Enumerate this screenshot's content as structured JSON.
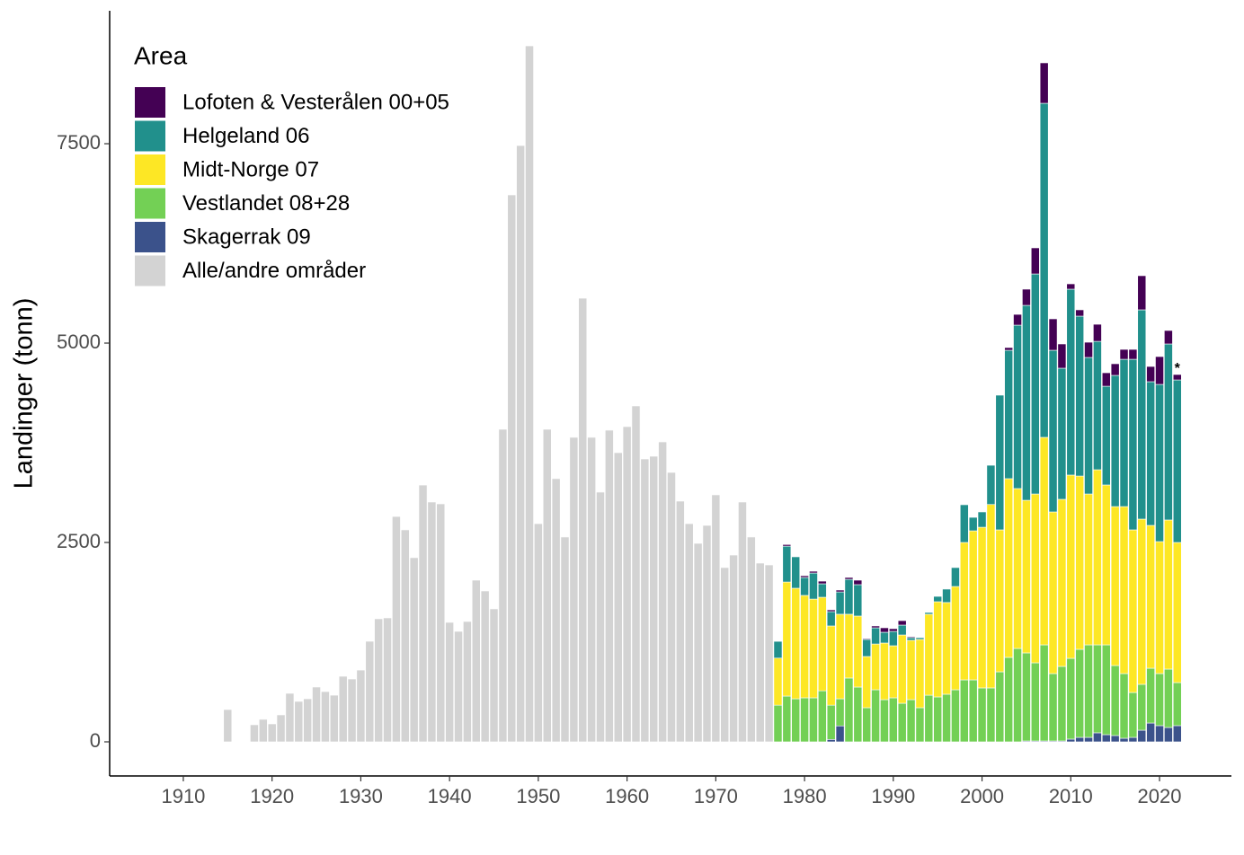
{
  "chart_data": {
    "type": "stacked-bar",
    "ylabel": "Landinger (tonn)",
    "legend_title": "Area",
    "legend_position": "top-left",
    "grid": false,
    "xlim": [
      1901.7,
      2028.1
    ],
    "ylim": [
      -428,
      9167
    ],
    "xticks": [
      1910,
      1920,
      1930,
      1940,
      1950,
      1960,
      1970,
      1980,
      1990,
      2000,
      2010,
      2020
    ],
    "yticks": [
      0,
      2500,
      5000,
      7500
    ],
    "x": [
      1915,
      1916,
      1917,
      1918,
      1919,
      1920,
      1921,
      1922,
      1923,
      1924,
      1925,
      1926,
      1927,
      1928,
      1929,
      1930,
      1931,
      1932,
      1933,
      1934,
      1935,
      1936,
      1937,
      1938,
      1939,
      1940,
      1941,
      1942,
      1943,
      1944,
      1945,
      1946,
      1947,
      1948,
      1949,
      1950,
      1951,
      1952,
      1953,
      1954,
      1955,
      1956,
      1957,
      1958,
      1959,
      1960,
      1961,
      1962,
      1963,
      1964,
      1965,
      1966,
      1967,
      1968,
      1969,
      1970,
      1971,
      1972,
      1973,
      1974,
      1975,
      1976,
      1977,
      1978,
      1979,
      1980,
      1981,
      1982,
      1983,
      1984,
      1985,
      1986,
      1987,
      1988,
      1989,
      1990,
      1991,
      1992,
      1993,
      1994,
      1995,
      1996,
      1997,
      1998,
      1999,
      2000,
      2001,
      2002,
      2003,
      2004,
      2005,
      2006,
      2007,
      2008,
      2009,
      2010,
      2011,
      2012,
      2013,
      2014,
      2015,
      2016,
      2017,
      2018,
      2019,
      2020,
      2021,
      2022
    ],
    "series": [
      {
        "name": "Lofoten & Vesterålen 00+05",
        "color": "#440154",
        "values": [
          null,
          null,
          null,
          null,
          null,
          null,
          null,
          null,
          null,
          null,
          null,
          null,
          null,
          null,
          null,
          null,
          null,
          null,
          null,
          null,
          null,
          null,
          null,
          null,
          null,
          null,
          null,
          null,
          null,
          null,
          null,
          null,
          null,
          null,
          null,
          null,
          null,
          null,
          null,
          null,
          null,
          null,
          null,
          null,
          null,
          null,
          null,
          null,
          null,
          null,
          null,
          null,
          null,
          null,
          null,
          null,
          null,
          null,
          null,
          null,
          null,
          null,
          0,
          20,
          0,
          22,
          22,
          33,
          22,
          23,
          23,
          56,
          11,
          23,
          56,
          34,
          56,
          12,
          0,
          0,
          0,
          0,
          0,
          0,
          0,
          0,
          0,
          0,
          34,
          135,
          203,
          327,
          507,
          394,
          304,
          67,
          79,
          191,
          214,
          169,
          146,
          124,
          124,
          428,
          191,
          349,
          169,
          68
        ]
      },
      {
        "name": "Helgeland 06",
        "color": "#21908C",
        "values": [
          null,
          null,
          null,
          null,
          null,
          null,
          null,
          null,
          null,
          null,
          null,
          null,
          null,
          null,
          null,
          null,
          null,
          null,
          null,
          null,
          null,
          null,
          null,
          null,
          null,
          null,
          null,
          null,
          null,
          null,
          null,
          null,
          null,
          null,
          null,
          null,
          null,
          null,
          null,
          null,
          null,
          null,
          null,
          null,
          null,
          null,
          null,
          null,
          null,
          null,
          null,
          null,
          null,
          null,
          null,
          null,
          null,
          null,
          null,
          null,
          null,
          null,
          210,
          450,
          394,
          225,
          327,
          169,
          180,
          280,
          438,
          394,
          214,
          203,
          135,
          180,
          124,
          33,
          22,
          22,
          67,
          168,
          237,
          473,
          169,
          192,
          492,
          1689,
          1610,
          2049,
          2444,
          2759,
          4189,
          2027,
          1644,
          2331,
          2005,
          1712,
          1610,
          1238,
          1645,
          1847,
          2139,
          2624,
          1802,
          1971,
          2207,
          2038
        ]
      },
      {
        "name": "Midt-Norge 07",
        "color": "#FDE725",
        "values": [
          null,
          null,
          null,
          null,
          null,
          null,
          null,
          null,
          null,
          null,
          null,
          null,
          null,
          null,
          null,
          null,
          null,
          null,
          null,
          null,
          null,
          null,
          null,
          null,
          null,
          null,
          null,
          null,
          null,
          null,
          null,
          null,
          null,
          null,
          null,
          null,
          null,
          null,
          null,
          null,
          null,
          null,
          null,
          null,
          null,
          null,
          null,
          null,
          null,
          null,
          null,
          null,
          null,
          null,
          null,
          null,
          null,
          null,
          null,
          null,
          null,
          null,
          590,
          1430,
          1386,
          1284,
          1238,
          1173,
          993,
          1060,
          800,
          890,
          642,
          574,
          710,
          653,
          856,
          744,
          856,
          1015,
          1194,
          1150,
          1295,
          1723,
          1869,
          2015,
          2300,
          1780,
          2241,
          2005,
          1914,
          2117,
          2602,
          2027,
          2095,
          2298,
          2173,
          1892,
          2196,
          2005,
          1993,
          2094,
          2039,
          2072,
          1791,
          1655,
          1870,
          1757
        ]
      },
      {
        "name": "Vestlandet 08+28",
        "color": "#73D055",
        "values": [
          null,
          null,
          null,
          null,
          null,
          null,
          null,
          null,
          null,
          null,
          null,
          null,
          null,
          null,
          null,
          null,
          null,
          null,
          null,
          null,
          null,
          null,
          null,
          null,
          null,
          null,
          null,
          null,
          null,
          null,
          null,
          null,
          null,
          null,
          null,
          null,
          null,
          null,
          null,
          null,
          null,
          null,
          null,
          null,
          null,
          null,
          null,
          null,
          null,
          null,
          null,
          null,
          null,
          null,
          null,
          null,
          null,
          null,
          null,
          null,
          null,
          null,
          460,
          574,
          540,
          552,
          552,
          640,
          430,
          340,
          800,
          687,
          428,
          653,
          529,
          552,
          484,
          529,
          428,
          585,
          563,
          597,
          653,
          777,
          777,
          676,
          676,
          878,
          1059,
          1171,
          1104,
          980,
          1205,
          845,
          935,
          1013,
          1104,
          1160,
          1103,
          1126,
          878,
          811,
          563,
          575,
          687,
          653,
          732,
          540
        ]
      },
      {
        "name": "Skagerrak 09",
        "color": "#3B528B",
        "values": [
          null,
          null,
          null,
          null,
          null,
          null,
          null,
          null,
          null,
          null,
          null,
          null,
          null,
          null,
          null,
          null,
          null,
          null,
          null,
          null,
          null,
          null,
          null,
          null,
          null,
          null,
          null,
          null,
          null,
          null,
          null,
          null,
          null,
          null,
          null,
          null,
          null,
          null,
          null,
          null,
          null,
          null,
          null,
          null,
          null,
          null,
          null,
          null,
          null,
          null,
          null,
          null,
          null,
          null,
          null,
          null,
          null,
          null,
          null,
          null,
          null,
          null,
          0,
          0,
          0,
          0,
          0,
          0,
          30,
          200,
          0,
          0,
          0,
          0,
          0,
          0,
          0,
          0,
          0,
          0,
          0,
          0,
          0,
          0,
          0,
          0,
          0,
          0,
          0,
          0,
          11,
          11,
          11,
          11,
          11,
          34,
          56,
          56,
          113,
          90,
          79,
          45,
          56,
          146,
          236,
          203,
          180,
          203
        ]
      },
      {
        "name": "Alle/andre områder",
        "color": "#D3D3D3",
        "values": [
          405,
          null,
          null,
          214,
          282,
          225,
          338,
          608,
          507,
          540,
          687,
          630,
          585,
          822,
          788,
          900,
          1261,
          1543,
          1554,
          2826,
          2658,
          2309,
          3220,
          3007,
          2984,
          1498,
          1385,
          1509,
          2027,
          1892,
          1667,
          3919,
          6858,
          7477,
          8727,
          2736,
          3919,
          3300,
          2568,
          3818,
          5563,
          3818,
          3131,
          3908,
          3626,
          3953,
          4212,
          3547,
          3581,
          3761,
          3378,
          3018,
          2736,
          2489,
          2714,
          3097,
          2185,
          2342,
          3007,
          2568,
          2241,
          2218,
          null,
          null,
          null,
          null,
          null,
          null,
          null,
          null,
          null,
          null,
          null,
          null,
          null,
          null,
          null,
          null,
          null,
          null,
          null,
          null,
          null,
          null,
          null,
          null,
          null,
          null,
          null,
          null,
          null,
          null,
          null,
          null,
          null,
          null,
          null,
          null,
          null,
          null,
          null,
          null,
          null,
          null,
          null,
          null,
          null,
          null
        ]
      }
    ],
    "annotations": [
      {
        "text": "*",
        "x": 2022
      }
    ]
  }
}
